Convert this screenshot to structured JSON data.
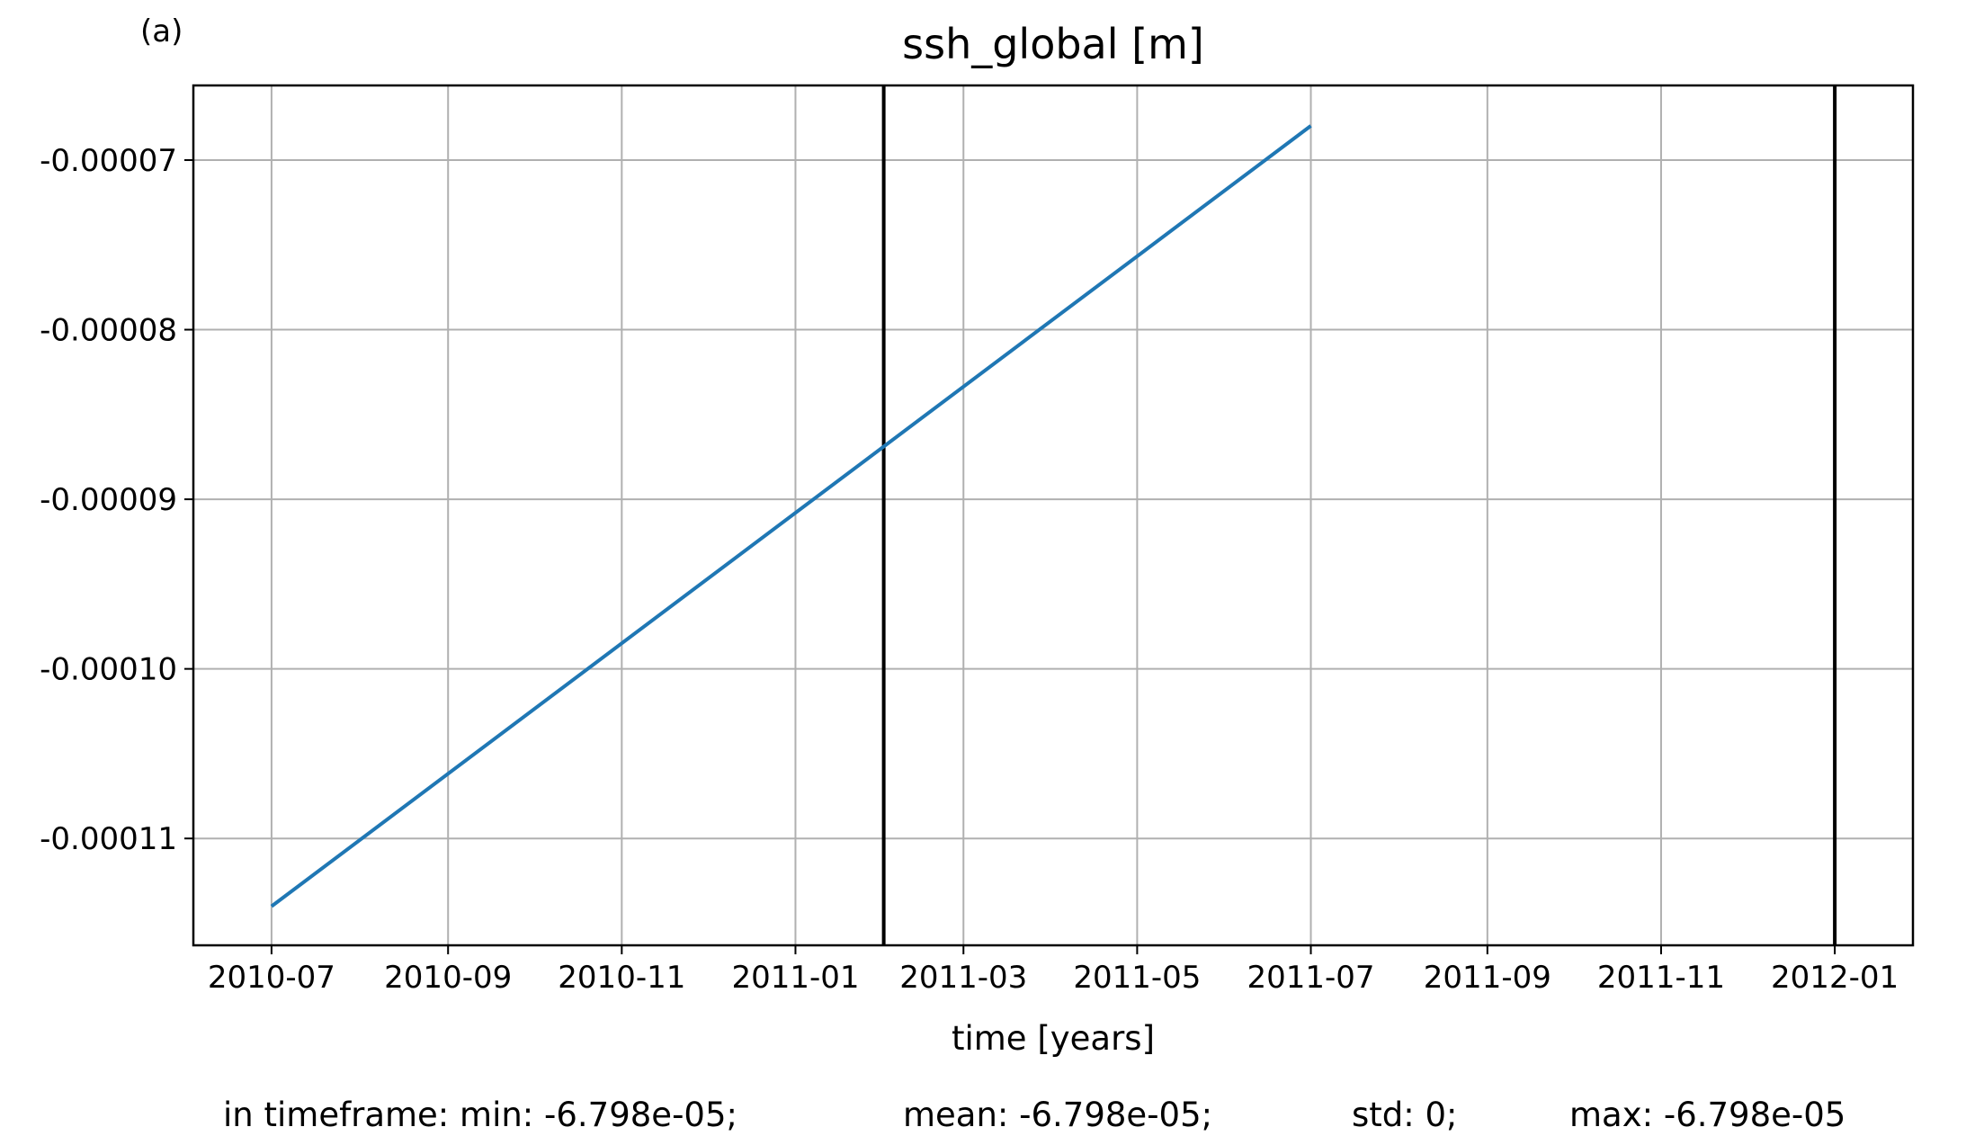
{
  "chart_data": {
    "type": "line",
    "panel_label": "(a)",
    "title": "ssh_global [m]",
    "x_label": "time [years]",
    "x": [
      "2010-07",
      "2011-07"
    ],
    "values": [
      -0.000114,
      -6.798e-05
    ],
    "color": "#1f77b4",
    "vlines": [
      "2011-02",
      "2012-01"
    ],
    "vline_color": "#000000",
    "xticks": [
      "2010-07",
      "2010-09",
      "2010-11",
      "2011-01",
      "2011-03",
      "2011-05",
      "2011-07",
      "2011-09",
      "2011-11",
      "2012-01"
    ],
    "ylim": [
      -0.0001163,
      -6.56e-05
    ],
    "yticks": [
      {
        "value": -7e-05,
        "label": "-0.00007"
      },
      {
        "value": -8e-05,
        "label": "-0.00008"
      },
      {
        "value": -9e-05,
        "label": "-0.00009"
      },
      {
        "value": -0.0001,
        "label": "-0.00010"
      },
      {
        "value": -0.00011,
        "label": "-0.00011"
      }
    ],
    "grid": true,
    "footer": [
      "in timeframe: min: -6.798e-05;",
      "mean: -6.798e-05;",
      "std: 0;",
      "max: -6.798e-05"
    ]
  }
}
